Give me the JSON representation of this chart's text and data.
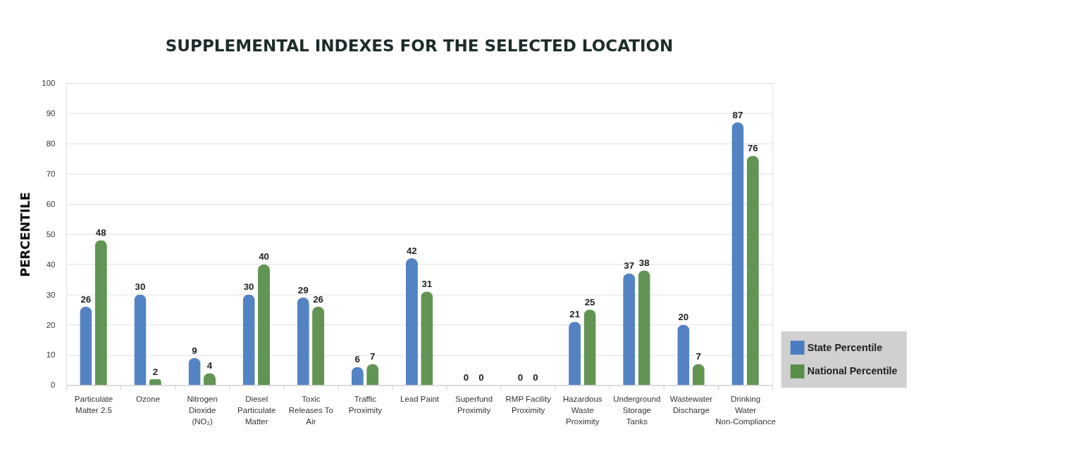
{
  "chart_data": {
    "type": "bar",
    "title": "SUPPLEMENTAL INDEXES FOR THE SELECTED LOCATION",
    "ylabel": "PERCENTILE",
    "categories": [
      "Particulate Matter 2.5",
      "Ozone",
      "Nitrogen Dioxide (NO₂)",
      "Diesel Particulate Matter",
      "Toxic Releases To Air",
      "Traffic Proximity",
      "Lead Paint",
      "Superfund Proximity",
      "RMP Facility Proximity",
      "Hazardous Waste Proximity",
      "Underground Storage Tanks",
      "Wastewater Discharge",
      "Drinking Water Non-Compliance"
    ],
    "series": [
      {
        "name": "State Percentile",
        "color": "#4a7cc0",
        "values": [
          26,
          30,
          9,
          30,
          29,
          6,
          42,
          0,
          0,
          21,
          37,
          20,
          87
        ]
      },
      {
        "name": "National Percentile",
        "color": "#5a8f4a",
        "values": [
          48,
          2,
          4,
          40,
          26,
          7,
          31,
          0,
          0,
          25,
          38,
          7,
          76
        ]
      }
    ],
    "ylim": [
      0,
      100
    ],
    "yticks": [
      0,
      10,
      20,
      30,
      40,
      50,
      60,
      70,
      80,
      90,
      100
    ],
    "grid": "y",
    "legend": "bottom right",
    "data_labels": true
  }
}
